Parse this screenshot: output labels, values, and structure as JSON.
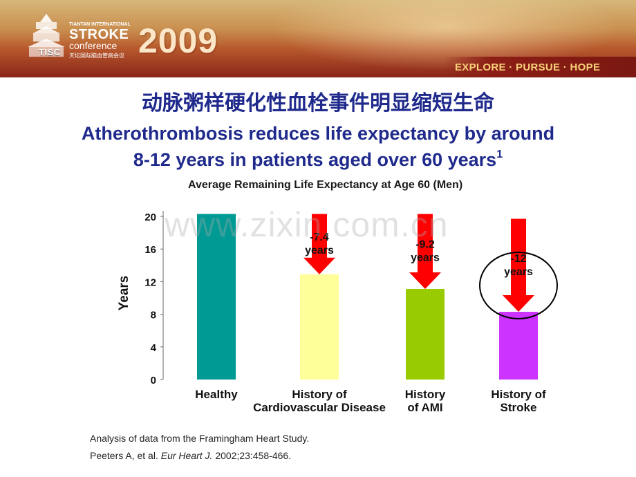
{
  "header": {
    "logo_line1": "TIANTAN INTERNATIONAL",
    "logo_line2": "STROKE",
    "logo_line3": "conference",
    "logo_line4": "天坛国际脑血管病会议",
    "logo_tisc": "TISC",
    "logo_year": "2009",
    "tagline": "EXPLORE · PURSUE · HOPE",
    "watermark": "www.zixin.com.cn"
  },
  "slide": {
    "title_cn": "动脉粥样硬化性血栓事件明显缩短生命",
    "title_en_line1": "Atherothrombosis reduces life expectancy by around",
    "title_en_line2": "8-12 years in patients aged over 60 years",
    "title_en_sup": "1",
    "source_line1": "Analysis of data from the Framingham Heart Study.",
    "source_line2_a": "Peeters A, et al. ",
    "source_line2_b": "Eur Heart J.",
    "source_line2_c": " 2002;23:458-466."
  },
  "chart_data": {
    "type": "bar",
    "title": "Average Remaining Life Expectancy at Age 60 (Men)",
    "ylabel": "Years",
    "ylim": [
      0,
      20
    ],
    "yticks": [
      0,
      4,
      8,
      12,
      16,
      20
    ],
    "categories": [
      [
        "Healthy"
      ],
      [
        "History of",
        "Cardiovascular Disease"
      ],
      [
        "History",
        "of AMI"
      ],
      [
        "History of",
        "Stroke"
      ]
    ],
    "values": [
      20.3,
      12.9,
      11.1,
      8.3
    ],
    "bar_colors": [
      "#009a94",
      "#ffff99",
      "#99cc00",
      "#cc33ff"
    ],
    "reductions": [
      null,
      "-7.4",
      "-9.2",
      "-12"
    ],
    "reduction_unit": "years",
    "arrow_color": "#ff0000",
    "highlight_circle_category": 3
  }
}
